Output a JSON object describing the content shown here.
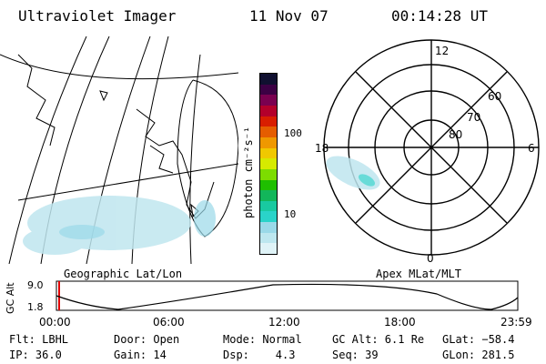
{
  "header": {
    "instrument": "Ultraviolet Imager",
    "date": "11 Nov 07",
    "time": "00:14:28 UT"
  },
  "map_left": {
    "label": "Geographic Lat/Lon"
  },
  "colorbar": {
    "unit_label": "photon cm⁻²s⁻¹",
    "ticks": [
      "100",
      "10"
    ],
    "colors": [
      "#dff3f7",
      "#bde7ef",
      "#9ad9e8",
      "#2ad3c9",
      "#19c9a0",
      "#12b65a",
      "#1fbf00",
      "#7ddc00",
      "#d6ea00",
      "#f0c800",
      "#ef9800",
      "#e55d00",
      "#d81e00",
      "#b3002b",
      "#7a0050",
      "#3c0044",
      "#101030"
    ]
  },
  "polar": {
    "label": "Apex MLat/MLT",
    "mlt_labels": {
      "top": "12",
      "right": "6",
      "bottom": "0",
      "left": "18"
    },
    "lat_labels": [
      "60",
      "70",
      "80"
    ]
  },
  "altitude": {
    "axis_label": "GC Alt",
    "y_ticks": [
      "9.0",
      "1.8"
    ],
    "x_ticks": [
      "00:00",
      "06:00",
      "12:00",
      "18:00",
      "23:59"
    ]
  },
  "footer": {
    "row1": {
      "flt": "Flt: LBHL",
      "door": "Door: Open",
      "mode": "Mode: Normal",
      "gc_alt": "GC Alt: 6.1 Re",
      "glat": "GLat: −58.4"
    },
    "row2": {
      "ip": "IP: 36.0",
      "gain": "Gain: 14",
      "dsp": "Dsp:    4.3",
      "seq": "Seq: 39",
      "glon": "GLon: 281.5"
    }
  }
}
